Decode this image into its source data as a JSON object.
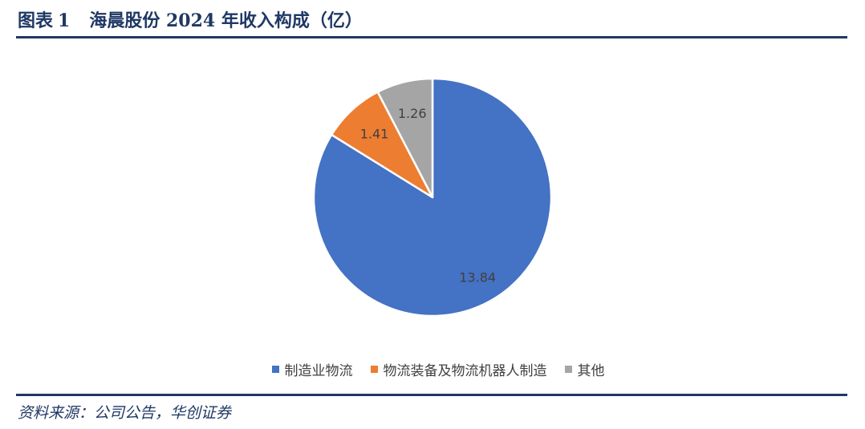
{
  "header": {
    "figure_label": "图表",
    "figure_number": "1",
    "title": "海晨股份 2024 年收入构成（亿）"
  },
  "source": "资料来源：公司公告，华创证券",
  "colors": {
    "accent_navy": "#1f3864",
    "series_1": "#4472c4",
    "series_2": "#ed7d31",
    "series_3": "#a5a5a5"
  },
  "chart_data": {
    "type": "pie",
    "title": "海晨股份 2024 年收入构成（亿）",
    "categories": [
      "制造业物流",
      "物流装备及物流机器人制造",
      "其他"
    ],
    "values": [
      13.84,
      1.41,
      1.26
    ],
    "data_labels": [
      "13.84",
      "1.41",
      "1.26"
    ],
    "colors": [
      "#4472c4",
      "#ed7d31",
      "#a5a5a5"
    ],
    "start": "12 o'clock",
    "direction": "clockwise",
    "legend": "bottom",
    "unit": "亿"
  }
}
